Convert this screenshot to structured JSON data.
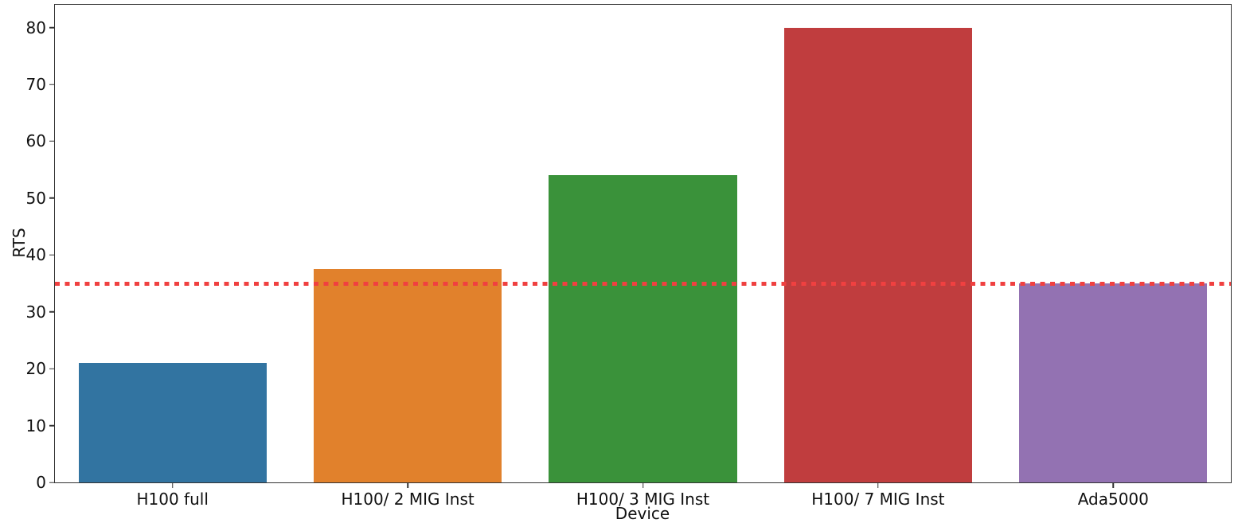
{
  "figure": {
    "background": "#ffffff",
    "axis_color": "#333333",
    "text_color": "#111111"
  },
  "chart_data": {
    "type": "bar",
    "title": "",
    "xlabel": "Device",
    "ylabel": "RTS",
    "categories": [
      "H100 full",
      "H100/ 2 MIG Inst",
      "H100/ 3 MIG Inst",
      "H100/ 7 MIG Inst",
      "Ada5000"
    ],
    "values": [
      21,
      37.5,
      54,
      80,
      35
    ],
    "bar_colors": [
      "#3274a1",
      "#e1812c",
      "#3a923a",
      "#c03d3e",
      "#9372b2"
    ],
    "yticks": [
      0,
      10,
      20,
      30,
      40,
      50,
      60,
      70,
      80
    ],
    "ylim": [
      0,
      84
    ],
    "grid": false,
    "legend": null,
    "bar_width_fraction": 0.8,
    "reference_line": {
      "value": 35,
      "color": "#f04040",
      "style": "dotted"
    }
  }
}
